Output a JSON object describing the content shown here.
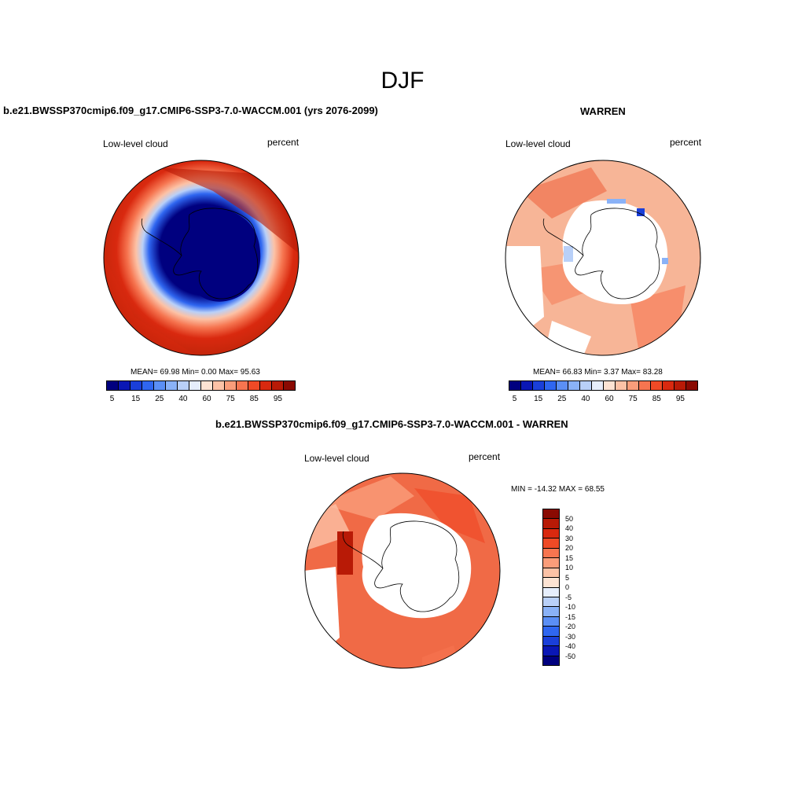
{
  "figure": {
    "season": "DJF"
  },
  "panels": [
    {
      "title": "b.e21.BWSSP370cmip6.f09_g17.CMIP6-SSP3-7.0-WACCM.001 (yrs 2076-2099)",
      "variable": "Low-level cloud",
      "units": "percent",
      "stats_text": "MEAN=  69.98  Min=   0.00  Max=  95.63",
      "mean": 69.98,
      "min": 0.0,
      "max": 95.63
    },
    {
      "title": "WARREN",
      "variable": "Low-level cloud",
      "units": "percent",
      "stats_text": "MEAN=  66.83  Min=   3.37  Max=  83.28",
      "mean": 66.83,
      "min": 3.37,
      "max": 83.28
    },
    {
      "title": "b.e21.BWSSP370cmip6.f09_g17.CMIP6-SSP3-7.0-WACCM.001 - WARREN",
      "variable": "Low-level cloud",
      "units": "percent",
      "stats_text": "MIN = -14.32 MAX =  68.55",
      "min": -14.32,
      "max": 68.55
    }
  ],
  "colorbar_main": {
    "tick_labels": [
      "5",
      "15",
      "25",
      "40",
      "60",
      "75",
      "85",
      "95"
    ],
    "colors": [
      "#00007f",
      "#0a17b5",
      "#1a3fd9",
      "#2f66f0",
      "#5b8ff5",
      "#8ab2f7",
      "#b9d0f8",
      "#e6eefc",
      "#fde3d3",
      "#fcc2a6",
      "#fa9d7a",
      "#f67550",
      "#ef4a26",
      "#d9290f",
      "#b81a06",
      "#8a0a02"
    ]
  },
  "colorbar_diff": {
    "tick_labels": [
      "50",
      "40",
      "30",
      "20",
      "15",
      "10",
      "5",
      "0",
      "-5",
      "-10",
      "-15",
      "-20",
      "-30",
      "-40",
      "-50"
    ],
    "colors": [
      "#8a0a02",
      "#b81a06",
      "#d9290f",
      "#ef4a26",
      "#f67550",
      "#fa9d7a",
      "#fcc2a6",
      "#fde3d3",
      "#e6eefc",
      "#b9d0f8",
      "#8ab2f7",
      "#5b8ff5",
      "#2f66f0",
      "#1a3fd9",
      "#0a17b5",
      "#00007f"
    ]
  },
  "map_colors": {
    "model_ocean": "#c8280a",
    "model_ice": "#00007f",
    "obs_field": "#f7b597",
    "diff_field": "#f06a46",
    "missing": "#ffffff"
  }
}
